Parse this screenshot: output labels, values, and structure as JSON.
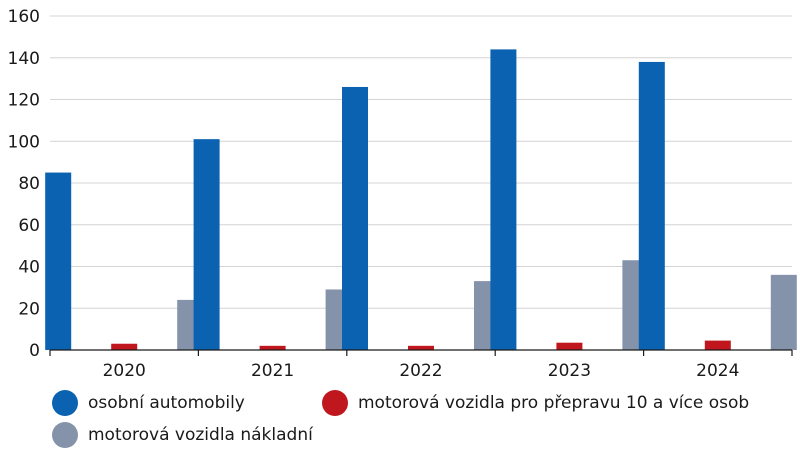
{
  "chart_data": {
    "type": "bar",
    "categories": [
      "2020",
      "2021",
      "2022",
      "2023",
      "2024"
    ],
    "series": [
      {
        "name": "osobní automobily",
        "color": "#0a62b0",
        "values": [
          85,
          101,
          126,
          144,
          138
        ]
      },
      {
        "name": "motorová vozidla pro přepravu 10 a více osob",
        "color": "#c0171e",
        "values": [
          3,
          2,
          2,
          3.5,
          4.5
        ]
      },
      {
        "name": "motorová vozidla nákladní",
        "color": "#8593aa",
        "values": [
          24,
          29,
          33,
          43,
          36
        ]
      }
    ],
    "y_ticks": [
      "0",
      "20",
      "40",
      "60",
      "80",
      "100",
      "120",
      "140",
      "160"
    ],
    "ylim": [
      0,
      160
    ],
    "grid": true,
    "legend_position": "bottom"
  }
}
